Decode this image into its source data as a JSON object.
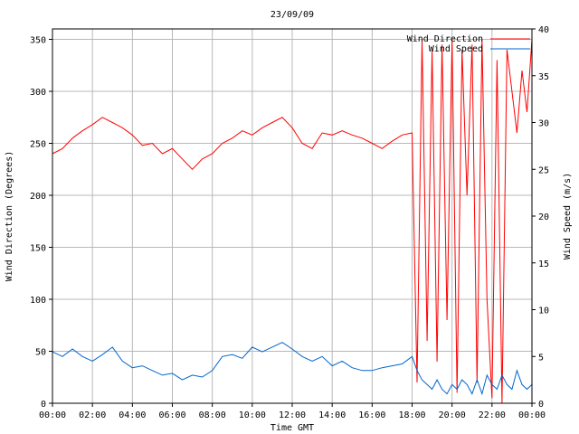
{
  "chart_data": {
    "type": "line",
    "title": "23/09/09",
    "xlabel": "Time GMT",
    "ylabel_left": "Wind Direction (Degrees)",
    "ylabel_right": "Wind Speed (m/s)",
    "x_tick_labels": [
      "00:00",
      "02:00",
      "04:00",
      "06:00",
      "08:00",
      "10:00",
      "12:00",
      "14:00",
      "16:00",
      "18:00",
      "20:00",
      "22:00",
      "00:00"
    ],
    "y_left_ticks": [
      0,
      50,
      100,
      150,
      200,
      250,
      300,
      350
    ],
    "y_right_ticks": [
      0,
      5,
      10,
      15,
      20,
      25,
      30,
      35,
      40
    ],
    "ylim_left": [
      0,
      360
    ],
    "ylim_right": [
      0,
      40
    ],
    "xlim_hours": [
      0,
      24
    ],
    "grid": true,
    "legend_position": "top-right",
    "series": [
      {
        "name": "Wind Direction",
        "axis": "left",
        "color": "#ff0000",
        "x_hours": [
          0,
          0.5,
          1,
          1.5,
          2,
          2.5,
          3,
          3.5,
          4,
          4.5,
          5,
          5.5,
          6,
          6.5,
          7,
          7.5,
          8,
          8.5,
          9,
          9.5,
          10,
          10.5,
          11,
          11.5,
          12,
          12.5,
          13,
          13.5,
          14,
          14.5,
          15,
          15.5,
          16,
          16.5,
          17,
          17.5,
          18,
          18.25,
          18.5,
          18.75,
          19,
          19.25,
          19.5,
          19.75,
          20,
          20.25,
          20.5,
          20.75,
          21,
          21.25,
          21.5,
          21.75,
          22,
          22.25,
          22.5,
          22.75,
          23,
          23.25,
          23.5,
          23.75,
          24
        ],
        "values": [
          240,
          245,
          255,
          262,
          268,
          275,
          270,
          265,
          258,
          248,
          250,
          240,
          245,
          235,
          225,
          235,
          240,
          250,
          255,
          262,
          258,
          265,
          270,
          275,
          265,
          250,
          245,
          260,
          258,
          262,
          258,
          255,
          250,
          245,
          252,
          258,
          260,
          20,
          350,
          60,
          340,
          40,
          345,
          80,
          350,
          10,
          340,
          200,
          345,
          20,
          350,
          100,
          5,
          330,
          0,
          340,
          300,
          260,
          320,
          280,
          350
        ]
      },
      {
        "name": "Wind Speed",
        "axis": "right",
        "color": "#0066cc",
        "x_hours": [
          0,
          0.5,
          1,
          1.5,
          2,
          2.5,
          3,
          3.5,
          4,
          4.5,
          5,
          5.5,
          6,
          6.5,
          7,
          7.5,
          8,
          8.5,
          9,
          9.5,
          10,
          10.5,
          11,
          11.5,
          12,
          12.5,
          13,
          13.5,
          14,
          14.5,
          15,
          15.5,
          16,
          16.5,
          17,
          17.5,
          18,
          18.25,
          18.5,
          18.75,
          19,
          19.25,
          19.5,
          19.75,
          20,
          20.25,
          20.5,
          20.75,
          21,
          21.25,
          21.5,
          21.75,
          22,
          22.25,
          22.5,
          22.75,
          23,
          23.25,
          23.5,
          23.75,
          24
        ],
        "values": [
          5.5,
          5,
          5.8,
          5,
          4.5,
          5.2,
          6,
          4.5,
          3.8,
          4,
          3.5,
          3,
          3.2,
          2.5,
          3,
          2.8,
          3.5,
          5,
          5.2,
          4.8,
          6,
          5.5,
          6,
          6.5,
          5.8,
          5,
          4.5,
          5,
          4,
          4.5,
          3.8,
          3.5,
          3.5,
          3.8,
          4,
          4.2,
          5,
          3.5,
          2.5,
          2,
          1.5,
          2.5,
          1.5,
          1,
          2,
          1.5,
          2.5,
          2,
          1,
          2.5,
          1,
          3,
          2,
          1.5,
          3,
          2,
          1.5,
          3.5,
          2,
          1.5,
          2
        ]
      }
    ]
  }
}
